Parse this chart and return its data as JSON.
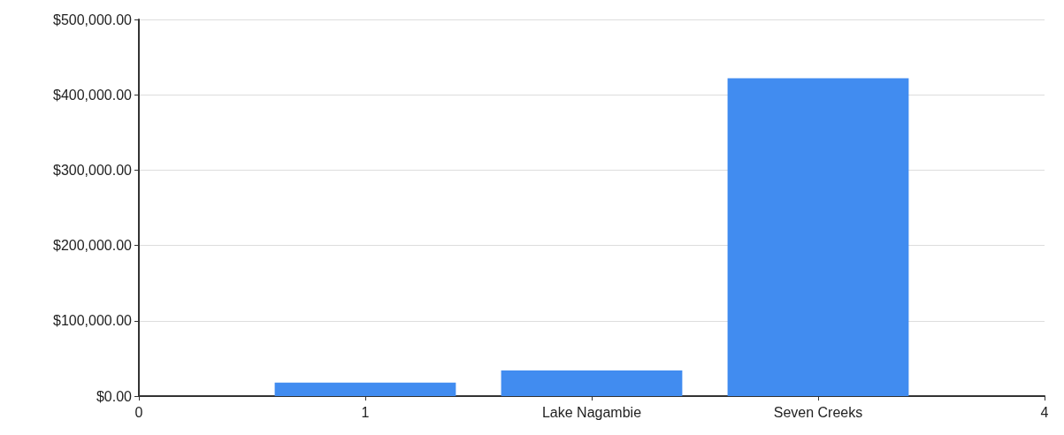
{
  "chart_data": {
    "type": "bar",
    "x": [
      1,
      2,
      3
    ],
    "values": [
      18000,
      34000,
      422000
    ],
    "color": "#418cf0",
    "xlim": [
      0,
      4
    ],
    "xticks": [
      0,
      1,
      {
        "value": 2,
        "label": "Lake Nagambie"
      },
      {
        "value": 3,
        "label": "Seven Creeks"
      },
      4
    ],
    "ylim": [
      0,
      500000
    ],
    "yticks": [
      {
        "value": 0,
        "label": "$0.00"
      },
      {
        "value": 100000,
        "label": "$100,000.00"
      },
      {
        "value": 200000,
        "label": "$200,000.00"
      },
      {
        "value": 300000,
        "label": "$300,000.00"
      },
      {
        "value": 400000,
        "label": "$400,000.00"
      },
      {
        "value": 500000,
        "label": "$500,000.00"
      }
    ],
    "grid": "y"
  }
}
